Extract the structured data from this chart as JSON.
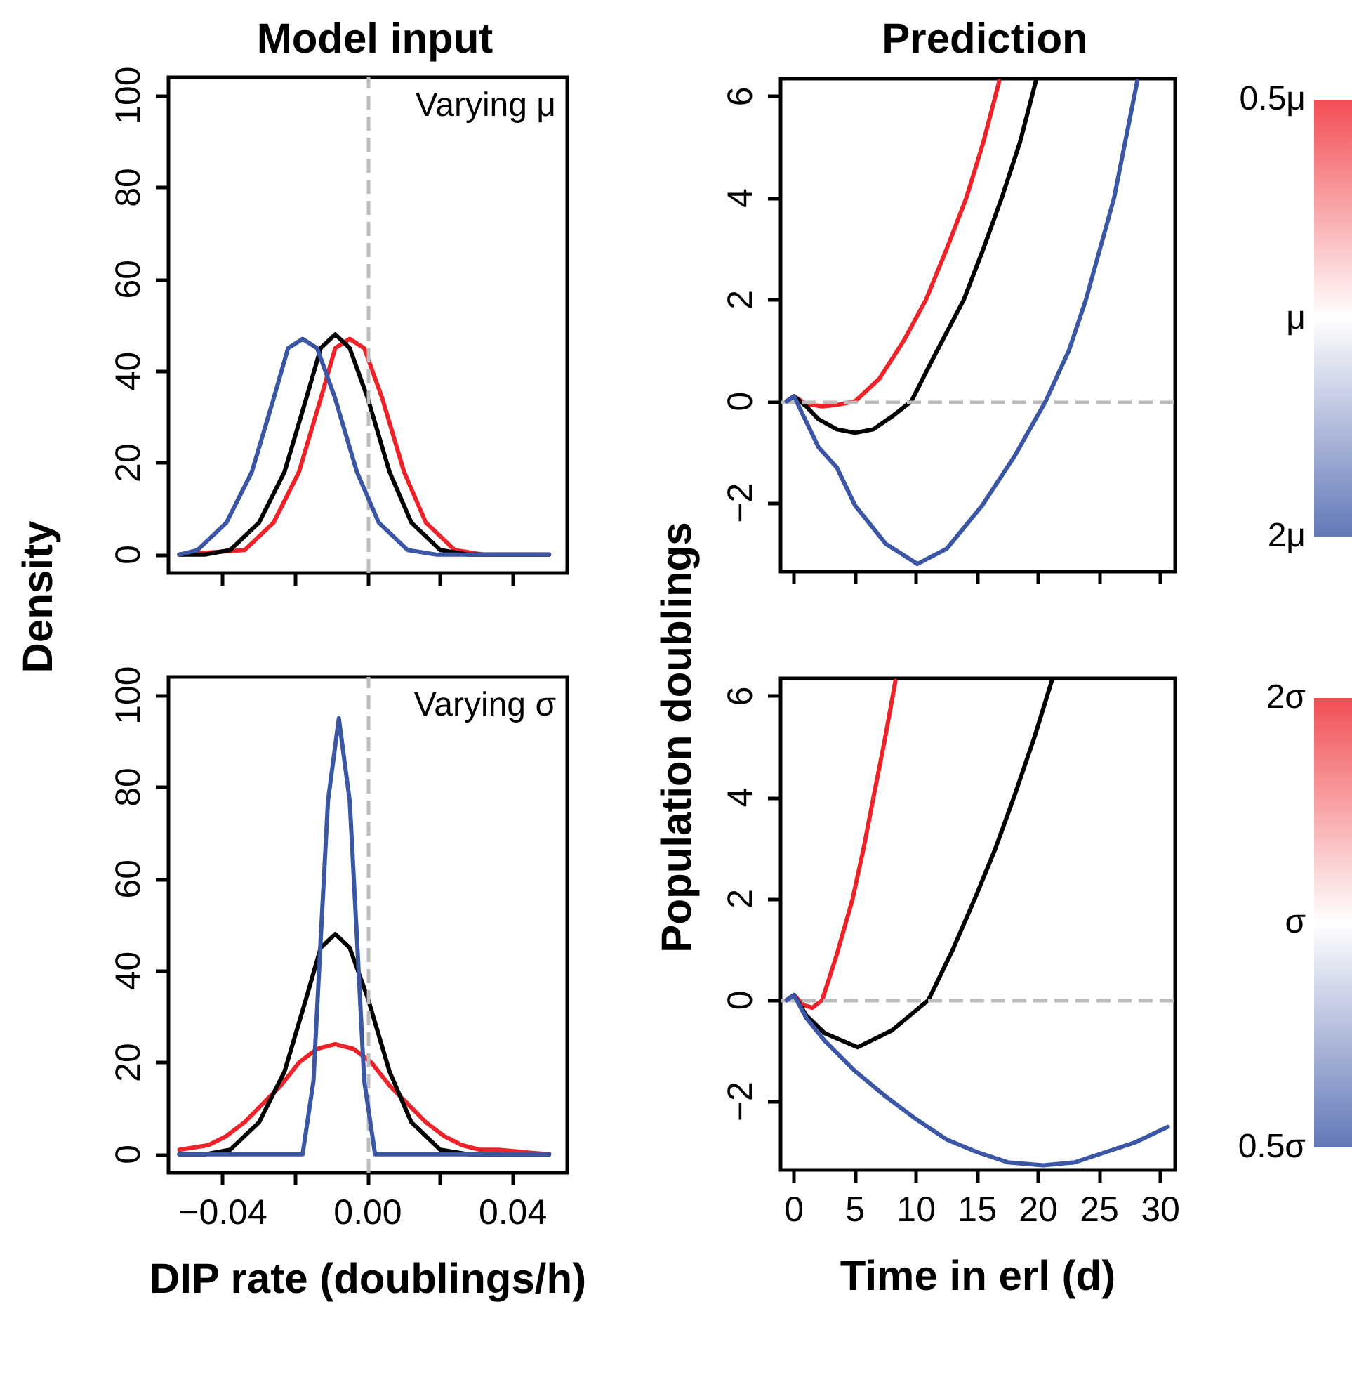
{
  "chart_data": [
    {
      "type": "line",
      "title": "Model input",
      "ylabel": "Density",
      "annotations": [
        "Varying μ"
      ],
      "xlim": [
        -0.055,
        0.055
      ],
      "ylim": [
        -4,
        104
      ],
      "xticks": [
        -0.04,
        -0.02,
        0,
        0.02,
        0.04
      ],
      "yticks": [
        0,
        20,
        40,
        60,
        80,
        100
      ],
      "tick_labels": "y",
      "ref_lines": [
        {
          "axis": "x",
          "value": 0,
          "color": "#bbbbbb",
          "line_style": "dashed"
        }
      ],
      "series": [
        {
          "color": "#ee2229",
          "x": [
            -0.052,
            -0.034,
            -0.026,
            -0.019,
            -0.013,
            -0.009,
            -0.005,
            -0.001,
            0.004,
            0.01,
            0.016,
            0.024,
            0.032,
            0.05
          ],
          "values": [
            0,
            1,
            7,
            18,
            34,
            45,
            47,
            45,
            34,
            18,
            7,
            1,
            0,
            0
          ]
        },
        {
          "color": "#000000",
          "x": [
            -0.052,
            -0.045,
            -0.038,
            -0.03,
            -0.023,
            -0.017,
            -0.013,
            -0.009,
            -0.005,
            0,
            0.006,
            0.012,
            0.02,
            0.028,
            0.05
          ],
          "values": [
            0,
            0,
            1,
            7,
            18,
            34,
            45,
            48,
            45,
            34,
            18,
            7,
            1,
            0,
            0
          ]
        },
        {
          "color": "#3c56a6",
          "x": [
            -0.052,
            -0.047,
            -0.039,
            -0.032,
            -0.026,
            -0.022,
            -0.018,
            -0.014,
            -0.009,
            -0.003,
            0.003,
            0.011,
            0.019,
            0.05
          ],
          "values": [
            0,
            1,
            7,
            18,
            34,
            45,
            47,
            45,
            34,
            18,
            7,
            1,
            0,
            0
          ]
        }
      ]
    },
    {
      "type": "line",
      "title": "Prediction",
      "ylabel": "Population doublings",
      "xlim": [
        -1.1,
        31.2
      ],
      "ylim": [
        -3.35,
        6.35
      ],
      "xticks": [
        0,
        5,
        10,
        15,
        20,
        25,
        30
      ],
      "yticks": [
        {
          "value": -2,
          "label": "−2"
        },
        0,
        2,
        4,
        6
      ],
      "tick_labels": "y",
      "ref_lines": [
        {
          "axis": "y",
          "value": 0,
          "color": "#bbbbbb",
          "line_style": "dashed"
        }
      ],
      "series": [
        {
          "color": "#ee2229",
          "x": [
            -0.6,
            0,
            1,
            2.3,
            3.5,
            5,
            7,
            9,
            10.8,
            12.5,
            14.1,
            15.5,
            16.8
          ],
          "values": [
            0,
            0.1,
            -0.05,
            -0.1,
            -0.07,
            0,
            0.45,
            1.2,
            2,
            3,
            4,
            5.1,
            6.3
          ]
        },
        {
          "color": "#000000",
          "x": [
            -0.6,
            0,
            1,
            2,
            3.5,
            5,
            6.5,
            8,
            9.6,
            11.5,
            13.9,
            15.5,
            17,
            18.5,
            19.8
          ],
          "values": [
            0,
            0.1,
            -0.1,
            -0.35,
            -0.55,
            -0.62,
            -0.55,
            -0.3,
            0,
            0.9,
            2,
            3,
            4,
            5.1,
            6.3
          ]
        },
        {
          "color": "#3c56a6",
          "x": [
            -0.6,
            0,
            1,
            2,
            3.5,
            5,
            7.5,
            10.1,
            12.5,
            15.4,
            18,
            20.6,
            22.5,
            23.9,
            26.2,
            28.1
          ],
          "values": [
            0,
            0.1,
            -0.4,
            -0.9,
            -1.3,
            -2.05,
            -2.8,
            -3.2,
            -2.9,
            -2.05,
            -1.1,
            0,
            1,
            2,
            4,
            6.3
          ]
        }
      ]
    },
    {
      "type": "other",
      "annotations": [
        "0.5μ",
        "μ",
        "2μ"
      ],
      "colors": [
        "#ee2229",
        "#ffffff",
        "#3c56a6"
      ]
    },
    {
      "type": "line",
      "xlabel": "DIP rate (doublings/h)",
      "annotations": [
        "Varying σ"
      ],
      "xlim": [
        -0.055,
        0.055
      ],
      "ylim": [
        -4,
        104
      ],
      "xticks": [
        {
          "value": -0.04,
          "label": "−0.04"
        },
        {
          "value": -0.02,
          "label": null
        },
        {
          "value": 0,
          "label": "0.00"
        },
        {
          "value": 0.02,
          "label": null
        },
        {
          "value": 0.04,
          "label": "0.04"
        }
      ],
      "yticks": [
        0,
        20,
        40,
        60,
        80,
        100
      ],
      "ref_lines": [
        {
          "axis": "x",
          "value": 0,
          "color": "#bbbbbb",
          "line_style": "dashed"
        }
      ],
      "series": [
        {
          "color": "#ee2229",
          "x": [
            -0.052,
            -0.044,
            -0.039,
            -0.034,
            -0.029,
            -0.024,
            -0.019,
            -0.014,
            -0.009,
            -0.004,
            0.001,
            0.006,
            0.011,
            0.016,
            0.021,
            0.026,
            0.031,
            0.036,
            0.05
          ],
          "values": [
            1,
            2,
            4,
            7,
            11,
            15,
            20,
            23,
            24,
            23,
            20,
            15,
            11,
            7,
            4,
            2,
            1,
            1,
            0
          ]
        },
        {
          "color": "#000000",
          "x": [
            -0.052,
            -0.045,
            -0.038,
            -0.03,
            -0.023,
            -0.017,
            -0.013,
            -0.009,
            -0.005,
            0,
            0.006,
            0.012,
            0.02,
            0.028,
            0.05
          ],
          "values": [
            0,
            0,
            1,
            7,
            18,
            34,
            45,
            48,
            45,
            34,
            18,
            7,
            1,
            0,
            0
          ]
        },
        {
          "color": "#3c56a6",
          "x": [
            -0.052,
            -0.025,
            -0.018,
            -0.015,
            -0.013,
            -0.011,
            -0.008,
            -0.005,
            -0.003,
            -0.001,
            0.002,
            0.01,
            0.05
          ],
          "values": [
            0,
            0,
            0,
            16,
            47,
            77,
            95,
            77,
            47,
            16,
            0,
            0,
            0
          ]
        }
      ]
    },
    {
      "type": "line",
      "xlabel": "Time in erl (d)",
      "xlim": [
        -1.1,
        31.2
      ],
      "ylim": [
        -3.35,
        6.35
      ],
      "xticks": [
        0,
        5,
        10,
        15,
        20,
        25,
        30
      ],
      "yticks": [
        {
          "value": -2,
          "label": "−2"
        },
        0,
        2,
        4,
        6
      ],
      "ref_lines": [
        {
          "axis": "y",
          "value": 0,
          "color": "#bbbbbb",
          "line_style": "dashed"
        }
      ],
      "series": [
        {
          "color": "#ee2229",
          "x": [
            -0.6,
            0,
            0.8,
            1.5,
            2.3,
            3.5,
            4.8,
            5.7,
            6.5,
            7.4,
            8.3
          ],
          "values": [
            0,
            0.1,
            -0.1,
            -0.15,
            0,
            0.9,
            2,
            3,
            4,
            5.1,
            6.3
          ]
        },
        {
          "color": "#000000",
          "x": [
            -0.6,
            0,
            1,
            2.5,
            5.2,
            8,
            11,
            13,
            14.8,
            16.5,
            18,
            19.7,
            21.1
          ],
          "values": [
            0,
            0.1,
            -0.3,
            -0.65,
            -0.93,
            -0.6,
            0,
            1,
            2,
            3,
            4,
            5.2,
            6.3
          ]
        },
        {
          "color": "#3c56a6",
          "x": [
            -0.6,
            0,
            1,
            2.5,
            5,
            7.5,
            10,
            12.5,
            15,
            17.5,
            20.4,
            23,
            25.5,
            28,
            30.6
          ],
          "values": [
            0,
            0.1,
            -0.35,
            -0.8,
            -1.4,
            -1.9,
            -2.35,
            -2.75,
            -3.0,
            -3.2,
            -3.26,
            -3.2,
            -3.0,
            -2.8,
            -2.5
          ]
        }
      ]
    },
    {
      "type": "other",
      "annotations": [
        "2σ",
        "σ",
        "0.5σ"
      ],
      "colors": [
        "#ee2229",
        "#ffffff",
        "#3c56a6"
      ]
    }
  ]
}
